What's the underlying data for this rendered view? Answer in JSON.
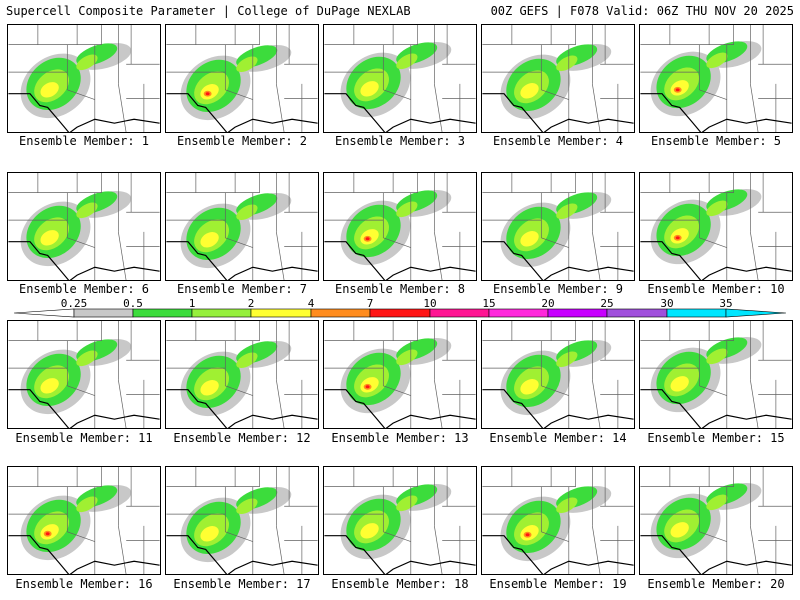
{
  "header": {
    "left": "Supercell Composite Parameter | College of DuPage NEXLAB",
    "right": "00Z GEFS | F078 Valid: 06Z THU NOV 20 2025"
  },
  "members": [
    {
      "label": "Ensemble Member: 1"
    },
    {
      "label": "Ensemble Member: 2"
    },
    {
      "label": "Ensemble Member: 3"
    },
    {
      "label": "Ensemble Member: 4"
    },
    {
      "label": "Ensemble Member: 5"
    },
    {
      "label": "Ensemble Member: 6"
    },
    {
      "label": "Ensemble Member: 7"
    },
    {
      "label": "Ensemble Member: 8"
    },
    {
      "label": "Ensemble Member: 9"
    },
    {
      "label": "Ensemble Member: 10"
    },
    {
      "label": "Ensemble Member: 11"
    },
    {
      "label": "Ensemble Member: 12"
    },
    {
      "label": "Ensemble Member: 13"
    },
    {
      "label": "Ensemble Member: 14"
    },
    {
      "label": "Ensemble Member: 15"
    },
    {
      "label": "Ensemble Member: 16"
    },
    {
      "label": "Ensemble Member: 17"
    },
    {
      "label": "Ensemble Member: 18"
    },
    {
      "label": "Ensemble Member: 19"
    },
    {
      "label": "Ensemble Member: 20"
    }
  ],
  "colorbar": {
    "labels": [
      "0.25",
      "0.5",
      "1",
      "2",
      "4",
      "7",
      "10",
      "15",
      "20",
      "25",
      "30",
      "35"
    ],
    "colors": [
      "#ffffff",
      "#c8c8c8",
      "#3cdc3c",
      "#96f03c",
      "#ffff32",
      "#ff8c1e",
      "#ff1414",
      "#ff1493",
      "#ff28dc",
      "#c800ff",
      "#a050dc",
      "#00e6ff"
    ],
    "level_colors": {
      "gray": "#c8c8c8",
      "green": "#3cdc3c",
      "lime": "#a0f032",
      "yellow": "#ffff32",
      "orange": "#ff8c1e",
      "red": "#ff1414"
    }
  },
  "map_colors": {
    "boundary": "#000000",
    "state_line": "#606060"
  }
}
